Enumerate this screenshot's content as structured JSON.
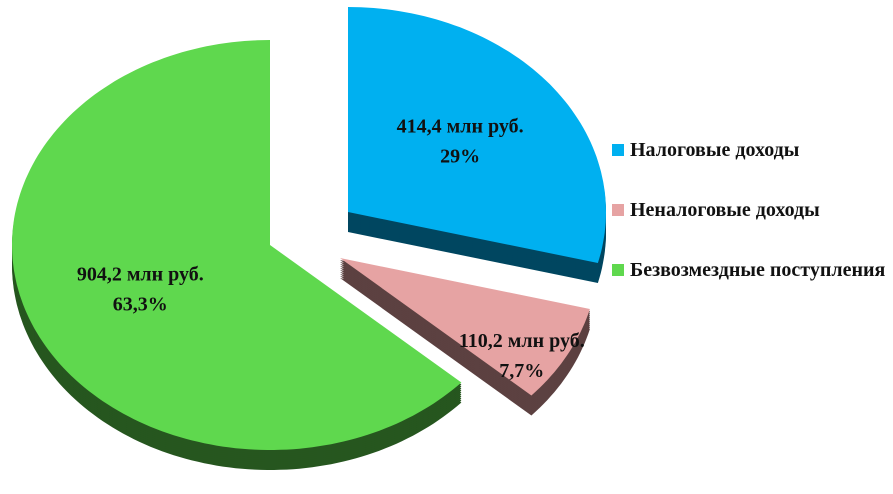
{
  "chart_data": {
    "type": "pie",
    "categories": [
      "Налоговые доходы",
      "Неналоговые доходы",
      "Безвозмездные поступления"
    ],
    "values": [
      29,
      7.7,
      63.3
    ],
    "value_labels": [
      "29%",
      "7,7%",
      "63,3%"
    ],
    "amounts": [
      414.4,
      110.2,
      904.2
    ],
    "amount_labels": [
      "414,4 млн руб.",
      "110,2 млн руб.",
      "904,2 млн руб."
    ],
    "colors": [
      "#00b0f0",
      "#e6a3a3",
      "#5fd84e"
    ],
    "legend": "right"
  }
}
